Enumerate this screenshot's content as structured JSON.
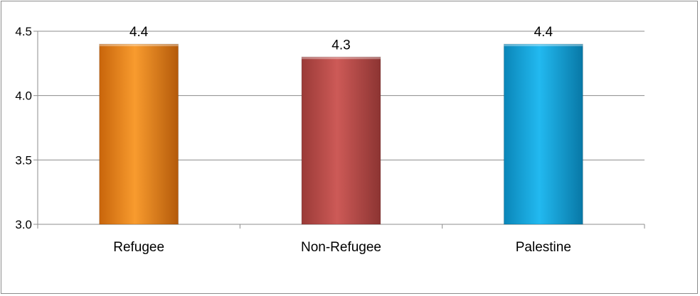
{
  "chart_data": {
    "type": "bar",
    "categories": [
      "Refugee",
      "Non-Refugee",
      "Palestine"
    ],
    "values": [
      4.4,
      4.3,
      4.4
    ],
    "data_labels": [
      "4.4",
      "4.3",
      "4.4"
    ],
    "ylim": [
      3.0,
      4.5
    ],
    "yticks": [
      "3.0",
      "3.5",
      "4.0",
      "4.5"
    ],
    "ytick_values": [
      3.0,
      3.5,
      4.0,
      4.5
    ],
    "grid": true,
    "legend": "none",
    "colors": [
      "#f7941d",
      "#c0504d",
      "#1aaee6"
    ]
  }
}
